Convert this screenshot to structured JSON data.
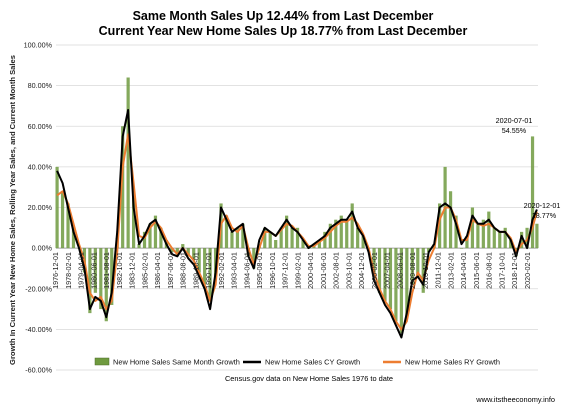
{
  "chart_data": {
    "type": "bar",
    "title": "Same Month Sales Up 12.44%  from Last December",
    "subtitle": "Current Year New Home Sales Up  18.77% from Last December",
    "ylabel": "Growth In Current Year New Home Sales, Rolling Year Sales, and Current Month Sales",
    "xlabel": "",
    "source_note": "Census.gov data on New Home Sales 1976 to date",
    "footer": "www.itstheeconomy.info",
    "ylim": [
      -0.6,
      1.0
    ],
    "xlim": [
      1976.9,
      2021.0
    ],
    "grid": true,
    "legend_position": "bottom",
    "yticks": [
      {
        "v": 1.0,
        "label": "100.00%"
      },
      {
        "v": 0.8,
        "label": "80.00%"
      },
      {
        "v": 0.6,
        "label": "60.00%"
      },
      {
        "v": 0.4,
        "label": "40.00%"
      },
      {
        "v": 0.2,
        "label": "20.00%"
      },
      {
        "v": 0.0,
        "label": "0.00%"
      },
      {
        "v": -0.2,
        "label": "-20.00%"
      },
      {
        "v": -0.4,
        "label": "-40.00%"
      },
      {
        "v": -0.6,
        "label": "-60.00%"
      }
    ],
    "xticks": [
      {
        "x": 1976.917,
        "label": "1976-12-01"
      },
      {
        "x": 1978.083,
        "label": "1978-02-01"
      },
      {
        "x": 1979.25,
        "label": "1979-04-01"
      },
      {
        "x": 1980.417,
        "label": "1980-06-01"
      },
      {
        "x": 1981.583,
        "label": "1981-08-01"
      },
      {
        "x": 1982.75,
        "label": "1982-10-01"
      },
      {
        "x": 1983.917,
        "label": "1983-12-01"
      },
      {
        "x": 1985.083,
        "label": "1985-02-01"
      },
      {
        "x": 1986.25,
        "label": "1986-04-01"
      },
      {
        "x": 1987.417,
        "label": "1987-06-01"
      },
      {
        "x": 1988.583,
        "label": "1988-08-01"
      },
      {
        "x": 1989.75,
        "label": "1989-10-01"
      },
      {
        "x": 1990.917,
        "label": "1990-12-01"
      },
      {
        "x": 1992.083,
        "label": "1992-02-01"
      },
      {
        "x": 1993.25,
        "label": "1993-04-01"
      },
      {
        "x": 1994.417,
        "label": "1994-06-01"
      },
      {
        "x": 1995.583,
        "label": "1995-08-01"
      },
      {
        "x": 1996.75,
        "label": "1996-10-01"
      },
      {
        "x": 1997.917,
        "label": "1997-12-01"
      },
      {
        "x": 1999.083,
        "label": "1999-02-01"
      },
      {
        "x": 2000.25,
        "label": "2000-04-01"
      },
      {
        "x": 2001.417,
        "label": "2001-06-01"
      },
      {
        "x": 2002.583,
        "label": "2002-08-01"
      },
      {
        "x": 2003.75,
        "label": "2003-10-01"
      },
      {
        "x": 2004.917,
        "label": "2004-12-01"
      },
      {
        "x": 2006.083,
        "label": "2006-02-01"
      },
      {
        "x": 2007.25,
        "label": "2007-04-01"
      },
      {
        "x": 2008.417,
        "label": "2008-06-01"
      },
      {
        "x": 2009.583,
        "label": "2009-08-01"
      },
      {
        "x": 2010.75,
        "label": "2010-10-01"
      },
      {
        "x": 2011.917,
        "label": "2011-12-01"
      },
      {
        "x": 2013.083,
        "label": "2013-02-01"
      },
      {
        "x": 2014.25,
        "label": "2014-04-01"
      },
      {
        "x": 2015.417,
        "label": "2015-06-01"
      },
      {
        "x": 2016.583,
        "label": "2016-08-01"
      },
      {
        "x": 2017.75,
        "label": "2017-10-01"
      },
      {
        "x": 2018.917,
        "label": "2018-12-01"
      },
      {
        "x": 2020.083,
        "label": "2020-02-01"
      }
    ],
    "series": [
      {
        "name": "New Home Sales Same Month Growth",
        "kind": "bar",
        "color": "#6f9a3f",
        "x": [
          1977.0,
          1977.5,
          1978.0,
          1978.5,
          1979.0,
          1979.5,
          1980.0,
          1980.5,
          1981.0,
          1981.5,
          1982.0,
          1982.5,
          1983.0,
          1983.5,
          1984.0,
          1984.5,
          1985.0,
          1985.5,
          1986.0,
          1986.5,
          1987.0,
          1987.5,
          1988.0,
          1988.5,
          1989.0,
          1989.5,
          1990.0,
          1990.5,
          1991.0,
          1991.5,
          1992.0,
          1992.5,
          1993.0,
          1993.5,
          1994.0,
          1994.5,
          1995.0,
          1995.5,
          1996.0,
          1996.5,
          1997.0,
          1997.5,
          1998.0,
          1998.5,
          1999.0,
          1999.5,
          2000.0,
          2000.5,
          2001.0,
          2001.5,
          2002.0,
          2002.5,
          2003.0,
          2003.5,
          2004.0,
          2004.5,
          2005.0,
          2005.5,
          2006.0,
          2006.5,
          2007.0,
          2007.5,
          2008.0,
          2008.5,
          2009.0,
          2009.5,
          2010.0,
          2010.5,
          2011.0,
          2011.5,
          2012.0,
          2012.5,
          2013.0,
          2013.5,
          2014.0,
          2014.5,
          2015.0,
          2015.5,
          2016.0,
          2016.5,
          2017.0,
          2017.5,
          2018.0,
          2018.5,
          2019.0,
          2019.5,
          2020.0,
          2020.5,
          2020.9
        ],
        "values": [
          0.4,
          0.28,
          0.22,
          0.1,
          0.0,
          -0.12,
          -0.32,
          -0.22,
          -0.3,
          -0.36,
          -0.28,
          0.05,
          0.6,
          0.84,
          0.25,
          0.02,
          0.08,
          0.12,
          0.16,
          0.1,
          0.04,
          -0.02,
          -0.04,
          0.02,
          -0.04,
          -0.06,
          -0.12,
          -0.18,
          -0.26,
          -0.14,
          0.22,
          0.16,
          0.08,
          0.1,
          0.12,
          -0.04,
          -0.1,
          0.02,
          0.1,
          0.08,
          0.04,
          0.1,
          0.16,
          0.1,
          0.1,
          0.04,
          0.0,
          0.02,
          0.04,
          0.08,
          0.12,
          0.14,
          0.16,
          0.14,
          0.22,
          0.1,
          0.06,
          0.0,
          -0.14,
          -0.22,
          -0.26,
          -0.3,
          -0.36,
          -0.42,
          -0.34,
          -0.18,
          -0.14,
          -0.22,
          -0.02,
          0.02,
          0.22,
          0.4,
          0.28,
          0.16,
          0.0,
          0.06,
          0.2,
          0.12,
          0.14,
          0.18,
          0.1,
          0.08,
          0.1,
          0.04,
          -0.04,
          0.08,
          0.1,
          0.55,
          0.12
        ]
      },
      {
        "name": "New Home Sales CY Growth",
        "kind": "line",
        "color": "#000000",
        "x": [
          1977.0,
          1977.5,
          1978.0,
          1978.5,
          1979.0,
          1979.5,
          1980.0,
          1980.5,
          1981.0,
          1981.5,
          1982.0,
          1982.5,
          1983.0,
          1983.5,
          1984.0,
          1984.5,
          1985.0,
          1985.5,
          1986.0,
          1986.5,
          1987.0,
          1987.5,
          1988.0,
          1988.5,
          1989.0,
          1989.5,
          1990.0,
          1990.5,
          1991.0,
          1991.5,
          1992.0,
          1992.5,
          1993.0,
          1993.5,
          1994.0,
          1994.5,
          1995.0,
          1995.5,
          1996.0,
          1996.5,
          1997.0,
          1997.5,
          1998.0,
          1998.5,
          1999.0,
          1999.5,
          2000.0,
          2000.5,
          2001.0,
          2001.5,
          2002.0,
          2002.5,
          2003.0,
          2003.5,
          2004.0,
          2004.5,
          2005.0,
          2005.5,
          2006.0,
          2006.5,
          2007.0,
          2007.5,
          2008.0,
          2008.5,
          2009.0,
          2009.5,
          2010.0,
          2010.5,
          2011.0,
          2011.5,
          2012.0,
          2012.5,
          2013.0,
          2013.5,
          2014.0,
          2014.5,
          2015.0,
          2015.5,
          2016.0,
          2016.5,
          2017.0,
          2017.5,
          2018.0,
          2018.5,
          2019.0,
          2019.5,
          2020.0,
          2020.5,
          2020.9
        ],
        "values": [
          0.38,
          0.32,
          0.2,
          0.08,
          0.0,
          -0.1,
          -0.3,
          -0.24,
          -0.26,
          -0.34,
          -0.22,
          0.08,
          0.55,
          0.68,
          0.2,
          0.02,
          0.06,
          0.12,
          0.14,
          0.08,
          0.02,
          -0.03,
          -0.04,
          0.0,
          -0.05,
          -0.08,
          -0.14,
          -0.2,
          -0.3,
          -0.12,
          0.2,
          0.14,
          0.08,
          0.1,
          0.12,
          -0.04,
          -0.1,
          0.04,
          0.1,
          0.08,
          0.06,
          0.1,
          0.14,
          0.1,
          0.08,
          0.04,
          0.0,
          0.02,
          0.04,
          0.06,
          0.1,
          0.12,
          0.14,
          0.14,
          0.18,
          0.1,
          0.06,
          -0.02,
          -0.16,
          -0.22,
          -0.28,
          -0.32,
          -0.38,
          -0.44,
          -0.32,
          -0.16,
          -0.14,
          -0.18,
          -0.02,
          0.02,
          0.2,
          0.22,
          0.2,
          0.12,
          0.02,
          0.06,
          0.16,
          0.12,
          0.12,
          0.14,
          0.1,
          0.08,
          0.08,
          0.04,
          -0.04,
          0.06,
          0.0,
          0.14,
          0.19
        ]
      },
      {
        "name": "New Home Sales RY Growth",
        "kind": "line",
        "color": "#ed7d31",
        "x": [
          1977.0,
          1977.5,
          1978.0,
          1978.5,
          1979.0,
          1979.5,
          1980.0,
          1980.5,
          1981.0,
          1981.5,
          1982.0,
          1982.5,
          1983.0,
          1983.5,
          1984.0,
          1984.5,
          1985.0,
          1985.5,
          1986.0,
          1986.5,
          1987.0,
          1987.5,
          1988.0,
          1988.5,
          1989.0,
          1989.5,
          1990.0,
          1990.5,
          1991.0,
          1991.5,
          1992.0,
          1992.5,
          1993.0,
          1993.5,
          1994.0,
          1994.5,
          1995.0,
          1995.5,
          1996.0,
          1996.5,
          1997.0,
          1997.5,
          1998.0,
          1998.5,
          1999.0,
          1999.5,
          2000.0,
          2000.5,
          2001.0,
          2001.5,
          2002.0,
          2002.5,
          2003.0,
          2003.5,
          2004.0,
          2004.5,
          2005.0,
          2005.5,
          2006.0,
          2006.5,
          2007.0,
          2007.5,
          2008.0,
          2008.5,
          2009.0,
          2009.5,
          2010.0,
          2010.5,
          2011.0,
          2011.5,
          2012.0,
          2012.5,
          2013.0,
          2013.5,
          2014.0,
          2014.5,
          2015.0,
          2015.5,
          2016.0,
          2016.5,
          2017.0,
          2017.5,
          2018.0,
          2018.5,
          2019.0,
          2019.5,
          2020.0,
          2020.5,
          2020.9
        ],
        "values": [
          0.26,
          0.28,
          0.22,
          0.12,
          0.02,
          -0.06,
          -0.22,
          -0.26,
          -0.24,
          -0.3,
          -0.26,
          -0.02,
          0.4,
          0.56,
          0.32,
          0.06,
          0.05,
          0.1,
          0.13,
          0.1,
          0.04,
          0.0,
          -0.03,
          0.0,
          -0.03,
          -0.06,
          -0.12,
          -0.18,
          -0.26,
          -0.18,
          0.12,
          0.16,
          0.1,
          0.08,
          0.11,
          0.0,
          -0.08,
          0.0,
          0.08,
          0.08,
          0.06,
          0.09,
          0.12,
          0.11,
          0.08,
          0.05,
          0.01,
          0.01,
          0.03,
          0.05,
          0.08,
          0.11,
          0.13,
          0.13,
          0.15,
          0.12,
          0.07,
          0.0,
          -0.12,
          -0.2,
          -0.26,
          -0.3,
          -0.36,
          -0.4,
          -0.36,
          -0.22,
          -0.12,
          -0.16,
          -0.06,
          0.0,
          0.14,
          0.2,
          0.2,
          0.14,
          0.04,
          0.04,
          0.14,
          0.12,
          0.11,
          0.12,
          0.1,
          0.08,
          0.08,
          0.05,
          -0.02,
          0.02,
          0.04,
          0.1,
          0.18
        ]
      }
    ],
    "annotations": [
      {
        "x": 2020.5,
        "y": 0.5455,
        "date": "2020-07-01",
        "label": "54.55%"
      },
      {
        "x": 2020.917,
        "y": 0.1877,
        "date": "2020-12-01",
        "label": "18.77%"
      }
    ]
  }
}
